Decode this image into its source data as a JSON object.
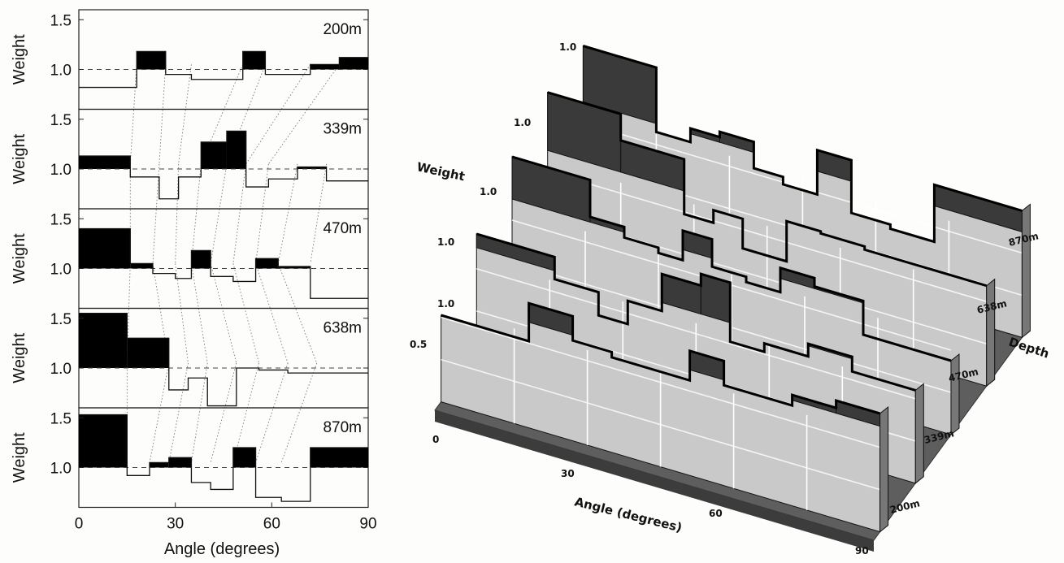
{
  "chart_data": [
    {
      "type": "bar",
      "subtype": "stepped-histogram-panels",
      "xlabel": "Angle (degrees)",
      "ylabel": "Weight",
      "xlim": [
        0,
        90
      ],
      "ylim": [
        0.6,
        1.6
      ],
      "xticks": [
        "0",
        "30",
        "60",
        "90"
      ],
      "yticks": [
        "1.0",
        "1.5"
      ],
      "reference_value": 1.0,
      "excess_fill": "#000000",
      "panels": [
        {
          "label": "200m",
          "edges": [
            0,
            18,
            27,
            35,
            51,
            58,
            72,
            81,
            90
          ],
          "weights": [
            0.82,
            1.18,
            0.95,
            0.9,
            1.18,
            0.95,
            1.05,
            1.12
          ]
        },
        {
          "label": "339m",
          "edges": [
            0,
            16,
            25,
            31,
            38,
            46,
            52,
            59,
            68,
            77,
            90
          ],
          "weights": [
            1.13,
            0.92,
            0.7,
            0.92,
            1.27,
            1.38,
            0.82,
            0.9,
            1.02,
            0.88
          ]
        },
        {
          "label": "470m",
          "edges": [
            0,
            16,
            23,
            30,
            35,
            41,
            48,
            55,
            62,
            72,
            90
          ],
          "weights": [
            1.4,
            1.05,
            0.95,
            0.9,
            1.18,
            0.92,
            0.87,
            1.1,
            1.02,
            0.7
          ]
        },
        {
          "label": "638m",
          "edges": [
            0,
            15,
            28,
            34,
            40,
            49,
            56,
            65,
            74,
            90
          ],
          "weights": [
            1.55,
            1.3,
            0.78,
            0.9,
            0.62,
            1.0,
            0.98,
            0.95,
            0.95
          ]
        },
        {
          "label": "870m",
          "edges": [
            0,
            15,
            22,
            28,
            35,
            41,
            48,
            55,
            63,
            72,
            90
          ],
          "weights": [
            1.53,
            0.92,
            1.05,
            1.1,
            0.85,
            0.78,
            1.2,
            0.7,
            0.66,
            1.2
          ]
        }
      ]
    },
    {
      "type": "bar",
      "subtype": "3d-stepped-histograms",
      "xlabel": "Angle (degrees)",
      "ylabel": "Weight",
      "zlabel": "Depth",
      "xticks": [
        "0",
        "30",
        "60",
        "90"
      ],
      "depths": [
        "200m",
        "339m",
        "470m",
        "638m",
        "870m"
      ],
      "weight_labels": [
        "0.5",
        "1.0",
        "1.0",
        "1.0",
        "1.0"
      ],
      "wall_color": "#c9c9c9",
      "floor_color": "#5e5e5e"
    }
  ]
}
